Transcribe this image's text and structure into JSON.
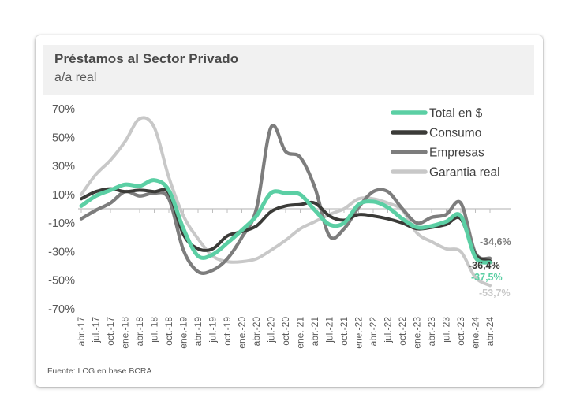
{
  "header": {
    "title": "Préstamos al Sector Privado",
    "subtitle": "a/a real"
  },
  "footer": {
    "source": "Fuente: LCG en base BCRA"
  },
  "colors": {
    "accent_total": "#5bcfa4",
    "consumo": "#3b3b38",
    "empresas": "#7d7d7d",
    "garantia": "#c8c8c8",
    "axis_text": "#595959",
    "zero_line": "#bfbfbf",
    "header_band": "#f1f1f1"
  },
  "chart_data": {
    "type": "line",
    "title": "Préstamos al Sector Privado",
    "subtitle": "a/a real",
    "xlabel": "",
    "ylabel": "",
    "ylim": [
      -70,
      70
    ],
    "grid": false,
    "legend_position": "top-right",
    "y_ticks": [
      70,
      50,
      30,
      10,
      -10,
      -30,
      -50,
      -70
    ],
    "y_tick_labels": [
      "70%",
      "50%",
      "30%",
      "10%",
      "-10%",
      "-30%",
      "-50%",
      "-70%"
    ],
    "categories": [
      "abr.-17",
      "jul.-17",
      "oct.-17",
      "ene.-18",
      "abr.-18",
      "jul.-18",
      "oct.-18",
      "ene.-19",
      "abr.-19",
      "jul.-19",
      "oct.-19",
      "ene.-20",
      "abr.-20",
      "jul.-20",
      "oct.-20",
      "ene.-21",
      "abr.-21",
      "jul.-21",
      "oct.-21",
      "ene.-22",
      "abr.-22",
      "jul.-22",
      "oct.-22",
      "ene.-23",
      "abr.-23",
      "jul.-23",
      "oct.-23",
      "ene.-24",
      "abr.-24"
    ],
    "series": [
      {
        "name": "Total en $",
        "color": "#5bcfa4",
        "end_label": "-37,5%",
        "values": [
          2,
          9,
          13,
          17,
          16,
          20,
          13,
          -14,
          -33,
          -32,
          -24,
          -15,
          -5,
          11,
          11,
          10,
          -1,
          -11,
          -10,
          3,
          5,
          1,
          -7,
          -13,
          -12,
          -9,
          -5,
          -34,
          -37.5
        ]
      },
      {
        "name": "Consumo",
        "color": "#3b3b38",
        "end_label": "-36,4%",
        "values": [
          7,
          12,
          14,
          12,
          13,
          12,
          11,
          -18,
          -28,
          -28,
          -19,
          -16,
          -12,
          -2,
          2,
          3,
          4,
          -5,
          -8,
          -4,
          -5,
          -7,
          -10,
          -14,
          -13,
          -11,
          -7,
          -32,
          -36.4
        ]
      },
      {
        "name": "Empresas",
        "color": "#7d7d7d",
        "end_label": "-34,6%",
        "values": [
          -7,
          -1,
          4,
          12,
          9,
          11,
          7,
          -29,
          -44,
          -43,
          -35,
          -20,
          0,
          57,
          40,
          36,
          15,
          -19,
          -14,
          1,
          12,
          12,
          0,
          -10,
          -6,
          -4,
          4,
          -31,
          -34.6
        ]
      },
      {
        "name": "Garantia real",
        "color": "#c8c8c8",
        "end_label": "-53,7%",
        "values": [
          10,
          24,
          34,
          47,
          63,
          57,
          22,
          -5,
          -21,
          -33,
          -37,
          -37,
          -35,
          -29,
          -22,
          -14,
          -9,
          -4,
          0,
          7,
          7,
          4,
          -1,
          -17,
          -23,
          -28,
          -30,
          -48,
          -53.7
        ]
      }
    ]
  }
}
